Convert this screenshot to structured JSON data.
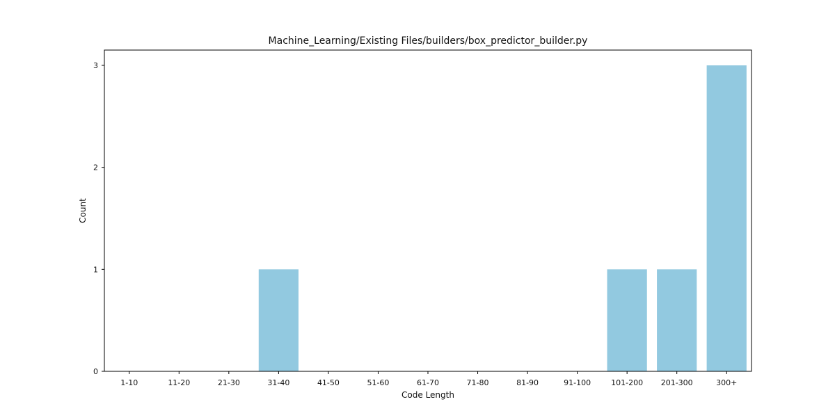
{
  "chart_data": {
    "type": "bar",
    "title": "Machine_Learning/Existing Files/builders/box_predictor_builder.py",
    "xlabel": "Code Length",
    "ylabel": "Count",
    "categories": [
      "1-10",
      "11-20",
      "21-30",
      "31-40",
      "41-50",
      "51-60",
      "61-70",
      "71-80",
      "81-90",
      "91-100",
      "101-200",
      "201-300",
      "300+"
    ],
    "values": [
      0,
      0,
      0,
      1,
      0,
      0,
      0,
      0,
      0,
      0,
      1,
      1,
      3
    ],
    "ylim": [
      0,
      3.15
    ],
    "yticks": [
      0,
      1,
      2,
      3
    ],
    "bar_color": "#92c9e0",
    "grid": false
  }
}
